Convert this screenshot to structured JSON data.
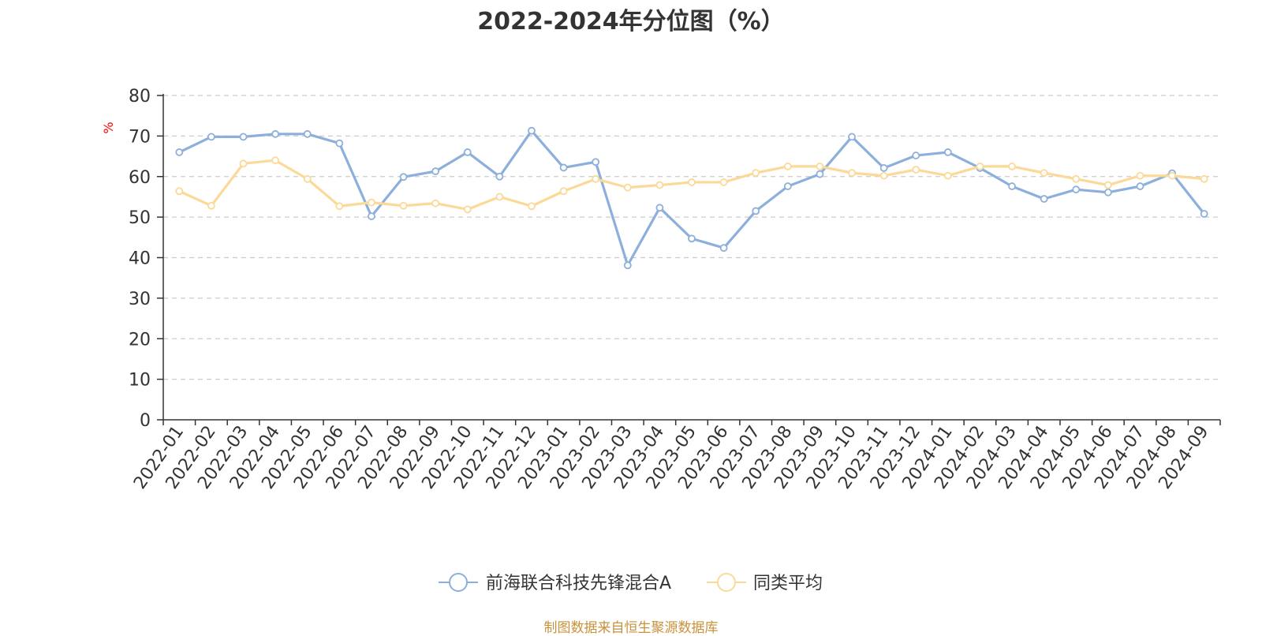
{
  "chart_data": {
    "type": "line",
    "title": "2022-2024年分位图（%）",
    "ylabel": "%",
    "xlabel": "",
    "ylim": [
      0,
      80
    ],
    "yticks": [
      0,
      10,
      20,
      30,
      40,
      50,
      60,
      70,
      80
    ],
    "grid": true,
    "legend_position": "bottom-center",
    "categories": [
      "2022-01",
      "2022-02",
      "2022-03",
      "2022-04",
      "2022-05",
      "2022-06",
      "2022-07",
      "2022-08",
      "2022-09",
      "2022-10",
      "2022-11",
      "2022-12",
      "2023-01",
      "2023-02",
      "2023-03",
      "2023-04",
      "2023-05",
      "2023-06",
      "2023-07",
      "2023-08",
      "2023-09",
      "2023-10",
      "2023-11",
      "2023-12",
      "2024-01",
      "2024-02",
      "2024-03",
      "2024-04",
      "2024-05",
      "2024-06",
      "2024-07",
      "2024-08",
      "2024-09"
    ],
    "series": [
      {
        "name": "前海联合科技先锋混合A",
        "color": "#8dafdc",
        "values": [
          66,
          69.8,
          69.8,
          70.5,
          70.5,
          68.2,
          50.2,
          59.9,
          61.3,
          66.0,
          60.0,
          71.3,
          62.2,
          63.6,
          38.1,
          52.3,
          44.7,
          42.4,
          51.5,
          57.6,
          60.6,
          69.8,
          62.1,
          65.2,
          66.0,
          62.1,
          57.6,
          54.5,
          56.8,
          56.1,
          57.6,
          60.8,
          50.8
        ]
      },
      {
        "name": "同类平均",
        "color": "#fbd998",
        "values": [
          56.4,
          52.8,
          63.2,
          64.0,
          59.4,
          52.7,
          53.6,
          52.8,
          53.4,
          51.9,
          55.0,
          52.7,
          56.4,
          59.4,
          57.3,
          57.9,
          58.6,
          58.6,
          60.9,
          62.5,
          62.5,
          60.9,
          60.2,
          61.7,
          60.2,
          62.5,
          62.5,
          60.9,
          59.4,
          57.9,
          60.2,
          60.2,
          59.4
        ]
      }
    ]
  },
  "source": "制图数据来自恒生聚源数据库"
}
